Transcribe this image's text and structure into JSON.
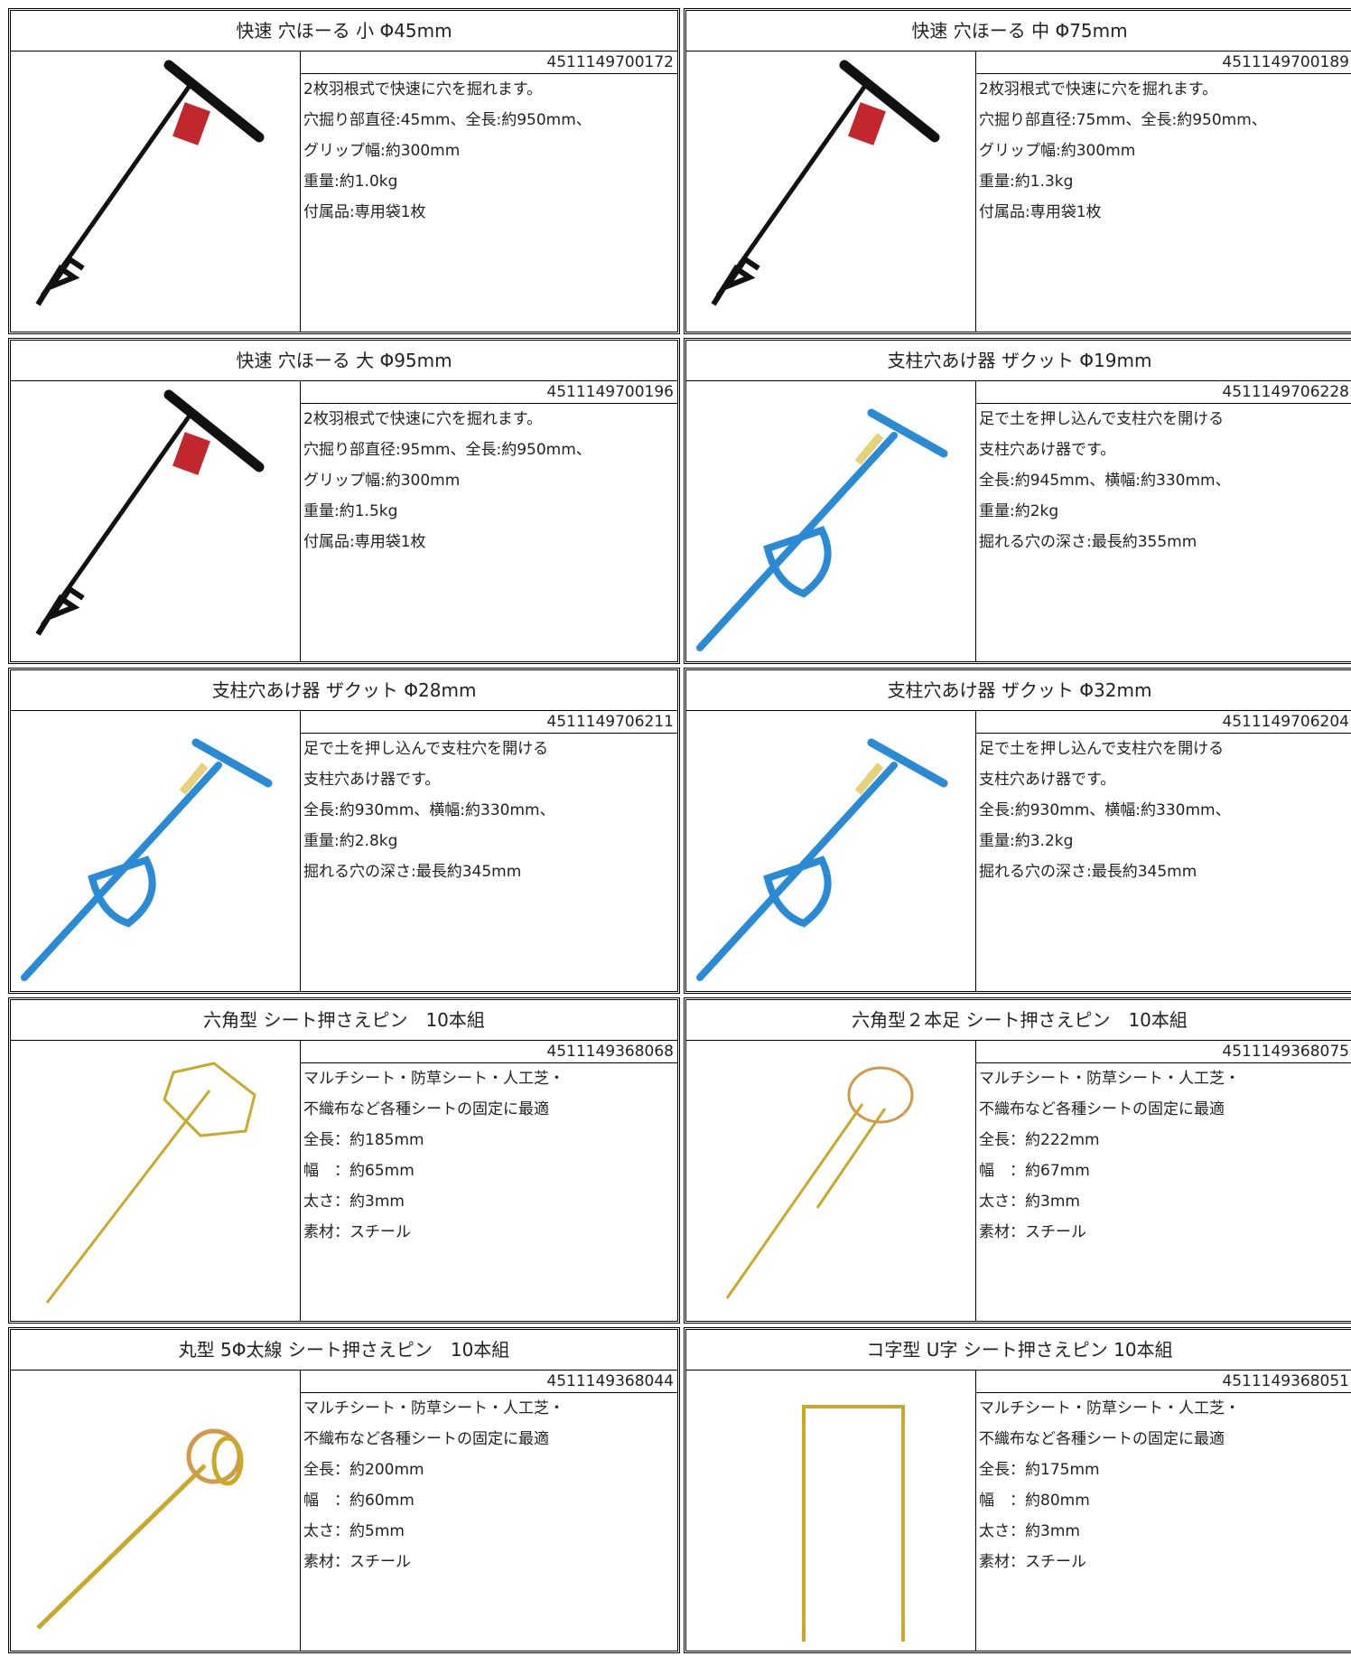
{
  "products": [
    {
      "title": "快速 穴ほーる 小 Φ45mm",
      "code": "4511149700172",
      "lines": [
        "2枚羽根式で快速に穴を掘れます。",
        "穴掘り部直径:45mm、全長:約950mm、",
        "グリップ幅:約300mm",
        "重量:約1.0kg",
        "付属品:専用袋1枚"
      ]
    },
    {
      "title": "快速 穴ほーる 中 Φ75mm",
      "code": "4511149700189",
      "lines": [
        "2枚羽根式で快速に穴を掘れます。",
        "穴掘り部直径:75mm、全長:約950mm、",
        "グリップ幅:約300mm",
        "重量:約1.3kg",
        "付属品:専用袋1枚"
      ]
    },
    {
      "title": "快速 穴ほーる 大 Φ95mm",
      "code": "4511149700196",
      "lines": [
        "2枚羽根式で快速に穴を掘れます。",
        "穴掘り部直径:95mm、全長:約950mm、",
        "グリップ幅:約300mm",
        "重量:約1.5kg",
        "付属品:専用袋1枚"
      ]
    },
    {
      "title": "支柱穴あけ器 ザクット Φ19mm",
      "code": "4511149706228",
      "lines": [
        "足で土を押し込んで支柱穴を開ける",
        "支柱穴あけ器です。",
        "全長:約945mm、横幅:約330mm、",
        "重量:約2kg",
        "掘れる穴の深さ:最長約355mm"
      ]
    },
    {
      "title": "支柱穴あけ器 ザクット Φ28mm",
      "code": "4511149706211",
      "lines": [
        "足で土を押し込んで支柱穴を開ける",
        "支柱穴あけ器です。",
        "全長:約930mm、横幅:約330mm、",
        "重量:約2.8kg",
        "掘れる穴の深さ:最長約345mm"
      ]
    },
    {
      "title": "支柱穴あけ器 ザクット Φ32mm",
      "code": "4511149706204",
      "lines": [
        "足で土を押し込んで支柱穴を開ける",
        "支柱穴あけ器です。",
        "全長:約930mm、横幅:約330mm、",
        "重量:約3.2kg",
        "掘れる穴の深さ:最長約345mm"
      ]
    },
    {
      "title": "六角型 シート押さえピン　10本組",
      "code": "4511149368068",
      "lines": [
        "マルチシート・防草シート・人工芝・",
        "不織布など各種シートの固定に最適",
        "全長：約185mm",
        "幅　：約65mm",
        "太さ：約3mm",
        "素材：スチール"
      ]
    },
    {
      "title": "六角型２本足 シート押さえピン　10本組",
      "code": "4511149368075",
      "lines": [
        "マルチシート・防草シート・人工芝・",
        "不織布など各種シートの固定に最適",
        "全長：約222mm",
        "幅　：約67mm",
        "太さ：約3mm",
        "素材：スチール"
      ]
    },
    {
      "title": "丸型 5Φ太線 シート押さえピン　10本組",
      "code": "4511149368044",
      "lines": [
        "マルチシート・防草シート・人工芝・",
        "不織布など各種シートの固定に最適",
        "全長：約200mm",
        "幅　：約60mm",
        "太さ：約5mm",
        "素材：スチール"
      ]
    },
    {
      "title": "コ字型 U字 シート押さえピン 10本組",
      "code": "4511149368051",
      "lines": [
        "マルチシート・防草シート・人工芝・",
        "不織布など各種シートの固定に最適",
        "全長：約175mm",
        "幅　：約80mm",
        "太さ：約3mm",
        "素材：スチール"
      ]
    }
  ]
}
